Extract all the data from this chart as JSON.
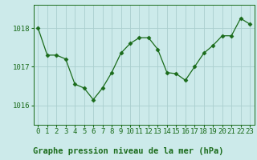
{
  "title": "Graphe pression niveau de la mer (hPa)",
  "x_values": [
    0,
    1,
    2,
    3,
    4,
    5,
    6,
    7,
    8,
    9,
    10,
    11,
    12,
    13,
    14,
    15,
    16,
    17,
    18,
    19,
    20,
    21,
    22,
    23
  ],
  "y_values": [
    1018.0,
    1017.3,
    1017.3,
    1017.2,
    1016.55,
    1016.45,
    1016.15,
    1016.45,
    1016.85,
    1017.35,
    1017.6,
    1017.75,
    1017.75,
    1017.45,
    1016.85,
    1016.82,
    1016.65,
    1017.0,
    1017.35,
    1017.55,
    1017.8,
    1017.8,
    1018.25,
    1018.1
  ],
  "line_color": "#1a6b1a",
  "marker": "D",
  "marker_size": 2.5,
  "bg_color": "#cceaea",
  "grid_color": "#aacece",
  "label_color": "#1a6b1a",
  "bottom_bar_color": "#2a7a2a",
  "yticks": [
    1016,
    1017,
    1018
  ],
  "ylim": [
    1015.5,
    1018.6
  ],
  "xlim": [
    -0.5,
    23.5
  ],
  "tick_fontsize": 6.5,
  "title_fontsize": 7.5
}
